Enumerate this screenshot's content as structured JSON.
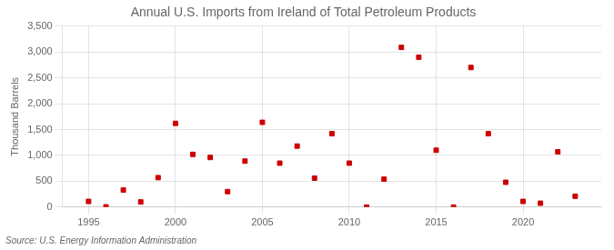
{
  "chart_data": {
    "type": "scatter",
    "title": "Annual U.S. Imports from Ireland of Total Petroleum Products",
    "y_label": "Thousand Barrels",
    "annotations": [
      "Source: U.S. Energy Information Administration"
    ],
    "x": [
      1995,
      1996,
      1997,
      1998,
      1999,
      2000,
      2001,
      2002,
      2003,
      2004,
      2005,
      2006,
      2007,
      2008,
      2009,
      2010,
      2011,
      2012,
      2013,
      2014,
      2015,
      2016,
      2017,
      2018,
      2019,
      2020,
      2021,
      2022,
      2023
    ],
    "values": [
      110,
      5,
      330,
      100,
      570,
      1620,
      1020,
      960,
      300,
      890,
      1640,
      850,
      1180,
      560,
      1420,
      850,
      0,
      540,
      3090,
      2900,
      1100,
      0,
      2700,
      1420,
      480,
      110,
      75,
      1070,
      210
    ],
    "color": "#cc0000",
    "marker": "square",
    "xlim": [
      1993.5,
      2024.5
    ],
    "xticks": [
      1995,
      2000,
      2005,
      2010,
      2015,
      2020
    ],
    "ylim": [
      0,
      3500
    ],
    "yticks": [
      0,
      500,
      {
        "value": 1000,
        "label": "1,000"
      },
      {
        "value": 1500,
        "label": "1,500"
      },
      {
        "value": 2000,
        "label": "2,000"
      },
      {
        "value": 2500,
        "label": "2,500"
      },
      {
        "value": 3000,
        "label": "3,000"
      },
      {
        "value": 3500,
        "label": "3,500"
      }
    ],
    "grid": true
  }
}
